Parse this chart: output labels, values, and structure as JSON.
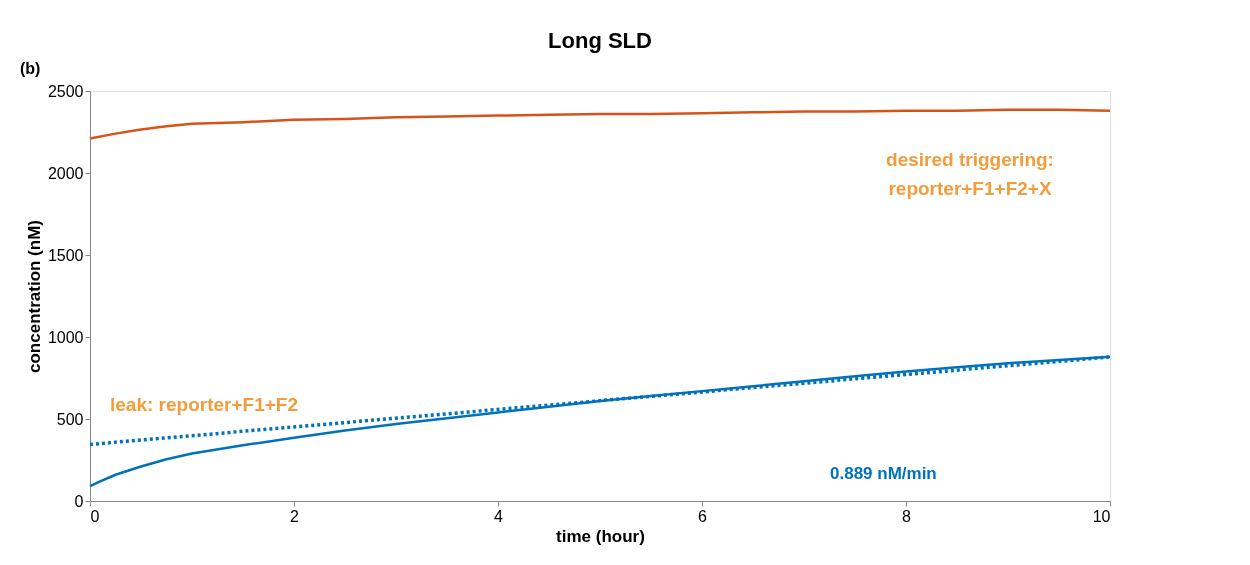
{
  "chart_data": {
    "type": "line",
    "title": "Long SLD",
    "xlabel": "time (hour)",
    "ylabel": "concentration (nM)",
    "xlim": [
      0,
      10
    ],
    "xticks": [
      0,
      2,
      4,
      6,
      8,
      10
    ],
    "ylim": [
      0,
      2500
    ],
    "yticks": [
      0,
      500,
      1000,
      1500,
      2000,
      2500
    ],
    "grid": false,
    "marker": "none",
    "series": [
      {
        "color": "#d95319",
        "line_style": "solid",
        "x": [
          0,
          0.25,
          0.5,
          0.75,
          1,
          1.5,
          2,
          2.5,
          3,
          3.5,
          4,
          4.5,
          5,
          5.5,
          6,
          6.5,
          7,
          7.5,
          8,
          8.5,
          9,
          9.5,
          10
        ],
        "values": [
          2210,
          2240,
          2265,
          2285,
          2300,
          2310,
          2325,
          2330,
          2340,
          2345,
          2350,
          2355,
          2360,
          2360,
          2365,
          2370,
          2375,
          2375,
          2380,
          2380,
          2385,
          2385,
          2380
        ]
      },
      {
        "color": "#0072bd",
        "line_style": "solid",
        "x": [
          0,
          0.1,
          0.25,
          0.5,
          0.75,
          1,
          1.5,
          2,
          2.5,
          3,
          3.5,
          4,
          4.5,
          5,
          5.5,
          6,
          6.5,
          7,
          7.5,
          8,
          8.5,
          9,
          9.5,
          10
        ],
        "values": [
          90,
          120,
          160,
          210,
          255,
          290,
          340,
          385,
          430,
          470,
          505,
          540,
          575,
          610,
          640,
          670,
          700,
          730,
          760,
          790,
          815,
          840,
          860,
          880
        ]
      },
      {
        "color": "#0072bd",
        "line_style": "dotted",
        "x": [
          0,
          10
        ],
        "values": [
          345,
          878
        ]
      }
    ],
    "annotations": [
      "(b)",
      "desired triggering:\nreporter+F1+F2+X",
      "leak: reporter+F1+F2",
      "0.889 nM/min"
    ]
  }
}
